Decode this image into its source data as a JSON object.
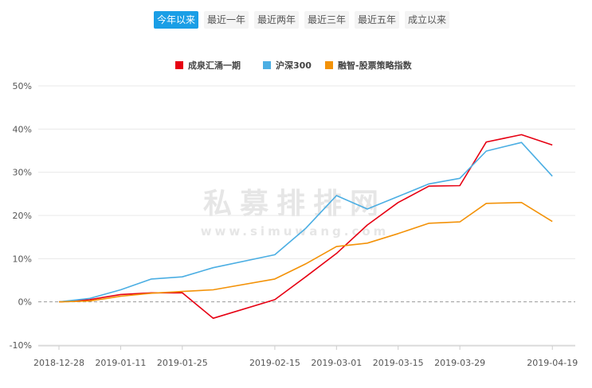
{
  "range_tabs": [
    {
      "label": "今年以来",
      "active": true
    },
    {
      "label": "最近一年",
      "active": false
    },
    {
      "label": "最近两年",
      "active": false
    },
    {
      "label": "最近三年",
      "active": false
    },
    {
      "label": "最近五年",
      "active": false
    },
    {
      "label": "成立以来",
      "active": false
    }
  ],
  "watermark": {
    "text": "私募排排网",
    "url": "www.simuwang.com"
  },
  "chart_data": {
    "type": "line",
    "x": [
      "2018-12-28",
      "2019-01-04",
      "2019-01-11",
      "2019-01-18",
      "2019-01-25",
      "2019-02-01",
      "2019-02-15",
      "2019-02-22",
      "2019-03-01",
      "2019-03-08",
      "2019-03-15",
      "2019-03-22",
      "2019-03-29",
      "2019-04-04",
      "2019-04-12",
      "2019-04-19",
      "2019-04-26"
    ],
    "x_tick_labels": [
      "2018-12-28",
      "2019-01-11",
      "2019-01-25",
      "2019-02-15",
      "2019-03-01",
      "2019-03-15",
      "2019-03-29",
      "2019-04-19"
    ],
    "y_tick_labels": [
      "50%",
      "40%",
      "30%",
      "20%",
      "10%",
      "0%",
      "-10%"
    ],
    "ylim": [
      -10,
      50
    ],
    "y_ticks": [
      -10,
      0,
      10,
      20,
      30,
      40,
      50
    ],
    "grid": true,
    "legend_position": "top-center",
    "series": [
      {
        "name": "成泉汇涌一期",
        "color": "#e60012",
        "values": [
          0,
          0.5,
          1.7,
          2.1,
          2.1,
          -3.8,
          0.5,
          5.8,
          11.2,
          17.8,
          23.0,
          26.8,
          26.9,
          37.0,
          38.7,
          36.3,
          null
        ]
      },
      {
        "name": "沪深300",
        "color": "#4baee3",
        "values": [
          0,
          0.8,
          2.8,
          5.3,
          5.8,
          7.9,
          10.9,
          17.0,
          24.6,
          21.5,
          24.4,
          27.3,
          28.6,
          34.9,
          36.9,
          29.1,
          null
        ]
      },
      {
        "name": "融智-股票策略指数",
        "color": "#f39208",
        "values": [
          0,
          0.2,
          1.3,
          2.0,
          2.4,
          2.8,
          5.3,
          8.8,
          12.8,
          13.6,
          15.8,
          18.2,
          18.5,
          22.8,
          23.0,
          18.6,
          null
        ]
      }
    ]
  }
}
